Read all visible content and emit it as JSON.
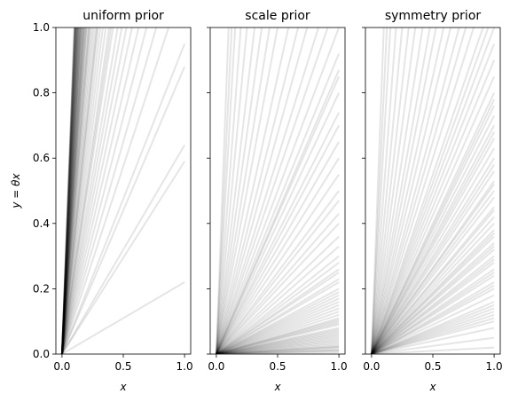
{
  "chart_data": {
    "type": "line",
    "ylabel": "y = θx",
    "shared_y": true,
    "ylim": [
      0,
      1.0
    ],
    "yticks": [
      "0.0",
      "0.2",
      "0.4",
      "0.6",
      "0.8",
      "1.0"
    ],
    "line_color": "#000000",
    "panels": [
      {
        "title": "uniform prior",
        "xlabel": "x",
        "xlim": [
          -0.05,
          1.05
        ],
        "xticks": [
          "0.0",
          "0.5",
          "1.0"
        ],
        "description_slopes_source": "lines y = θx through origin; θ values estimated",
        "slopes": [
          0.22,
          0.59,
          0.64,
          0.88,
          0.95,
          1.15,
          1.3,
          1.45,
          1.6,
          1.75,
          1.9,
          2.05,
          2.2,
          2.4,
          2.6,
          2.8,
          3.0,
          3.2,
          3.4,
          3.6,
          3.8,
          4.0,
          4.2,
          4.4,
          4.6,
          4.8,
          5.0,
          5.2,
          5.4,
          5.6,
          5.8,
          6.0,
          6.2,
          6.4,
          6.6,
          6.8,
          7.0,
          7.2,
          7.4,
          7.6,
          7.8,
          8.0,
          8.2,
          8.4,
          8.6,
          8.8,
          9.0,
          9.2,
          9.4,
          9.6,
          9.8,
          10.0,
          6.5,
          7.5,
          8.5,
          9.5,
          5.5,
          4.5,
          3.5,
          2.5,
          7.1,
          8.1,
          9.1,
          6.1,
          5.1,
          7.7,
          8.7,
          9.7,
          6.7,
          5.7
        ]
      },
      {
        "title": "scale prior",
        "xlabel": "x",
        "xlim": [
          -0.05,
          1.05
        ],
        "xticks": [
          "0.0",
          "0.5",
          "1.0"
        ],
        "slopes": [
          0.005,
          0.01,
          0.015,
          0.02,
          0.025,
          0.03,
          0.035,
          0.04,
          0.05,
          0.06,
          0.07,
          0.08,
          0.09,
          0.1,
          0.11,
          0.12,
          0.14,
          0.16,
          0.18,
          0.2,
          0.22,
          0.25,
          0.28,
          0.3,
          0.33,
          0.36,
          0.4,
          0.43,
          0.47,
          0.5,
          0.55,
          0.6,
          0.65,
          0.7,
          0.74,
          0.8,
          0.85,
          0.87,
          0.92,
          1.0,
          1.1,
          1.2,
          1.35,
          1.5,
          1.7,
          2.0,
          2.3,
          2.7,
          3.2,
          4.0,
          5.0,
          6.5,
          8.0,
          10.0,
          0.012,
          0.022,
          0.045,
          0.055,
          0.065,
          0.075,
          0.095,
          0.105,
          0.13,
          0.15,
          0.17,
          0.19,
          0.23,
          0.26
        ]
      },
      {
        "title": "symmetry prior",
        "xlabel": "x",
        "xlim": [
          -0.05,
          1.05
        ],
        "xticks": [
          "0.0",
          "0.5",
          "1.0"
        ],
        "slopes": [
          0.02,
          0.05,
          0.08,
          0.1,
          0.12,
          0.14,
          0.16,
          0.18,
          0.2,
          0.22,
          0.24,
          0.26,
          0.28,
          0.3,
          0.32,
          0.34,
          0.36,
          0.38,
          0.4,
          0.42,
          0.45,
          0.48,
          0.5,
          0.53,
          0.56,
          0.6,
          0.63,
          0.66,
          0.7,
          0.73,
          0.76,
          0.8,
          0.85,
          0.9,
          0.95,
          1.0,
          1.05,
          1.1,
          1.2,
          1.3,
          1.4,
          1.55,
          1.7,
          1.9,
          2.1,
          2.4,
          2.8,
          3.3,
          4.0,
          5.0,
          6.5,
          8.0,
          10.0,
          0.11,
          0.13,
          0.15,
          0.21,
          0.25,
          0.29,
          0.33,
          0.37,
          0.44,
          0.52,
          0.58,
          0.68,
          0.78
        ]
      }
    ]
  }
}
